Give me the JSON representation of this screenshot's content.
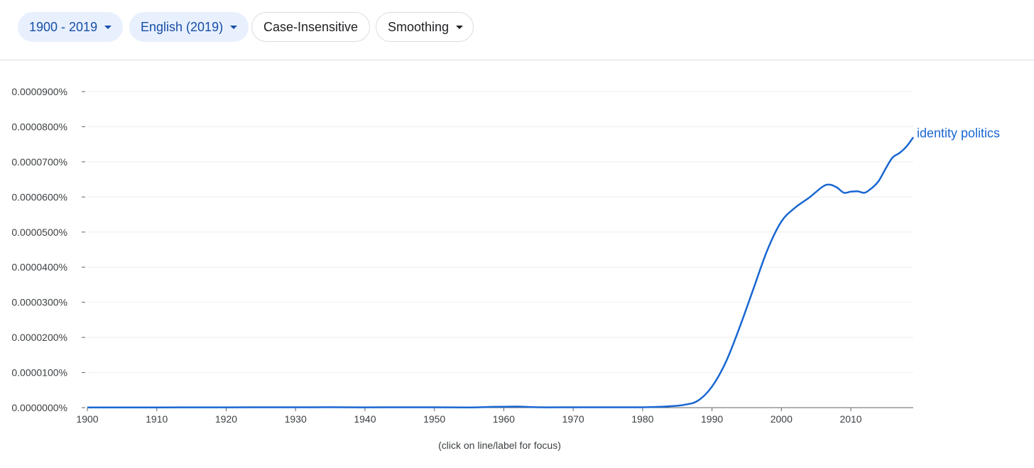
{
  "controls": {
    "year_range": "1900 - 2019",
    "corpus": "English (2019)",
    "case": "Case-Insensitive",
    "smoothing": "Smoothing"
  },
  "colors": {
    "series": "#1967d2",
    "chip_bg": "#e8f0fe",
    "chip_text": "#174ea6",
    "grid": "#eeeeee",
    "axis": "#5f6368"
  },
  "chart_data": {
    "type": "line",
    "xlim": [
      1900,
      2019
    ],
    "ylim": [
      0,
      9e-07
    ],
    "x_ticks": [
      "1900",
      "1910",
      "1920",
      "1930",
      "1940",
      "1950",
      "1960",
      "1970",
      "1980",
      "1990",
      "2000",
      "2010"
    ],
    "y_ticks": [
      "0.0000000%",
      "0.0000100%",
      "0.0000200%",
      "0.0000300%",
      "0.0000400%",
      "0.0000500%",
      "0.0000600%",
      "0.0000700%",
      "0.0000800%",
      "0.0000900%"
    ],
    "grid": true,
    "note": "(click on line/label for focus)",
    "series": [
      {
        "name": "identity politics",
        "color": "#1967d2",
        "points": [
          [
            1900,
            5e-10
          ],
          [
            1910,
            6e-10
          ],
          [
            1920,
            8e-10
          ],
          [
            1925,
            1e-09
          ],
          [
            1930,
            1e-09
          ],
          [
            1935,
            1.2e-09
          ],
          [
            1940,
            8e-10
          ],
          [
            1945,
            1e-09
          ],
          [
            1950,
            1e-09
          ],
          [
            1955,
            5e-10
          ],
          [
            1958,
            2e-09
          ],
          [
            1960,
            2.5e-09
          ],
          [
            1962,
            3e-09
          ],
          [
            1965,
            1e-09
          ],
          [
            1970,
            1e-09
          ],
          [
            1975,
            1e-09
          ],
          [
            1980,
            1e-09
          ],
          [
            1982,
            2e-09
          ],
          [
            1984,
            4e-09
          ],
          [
            1986,
            8e-09
          ],
          [
            1988,
            2e-08
          ],
          [
            1990,
            6e-08
          ],
          [
            1992,
            1.3e-07
          ],
          [
            1994,
            2.3e-07
          ],
          [
            1996,
            3.4e-07
          ],
          [
            1998,
            4.5e-07
          ],
          [
            2000,
            5.3e-07
          ],
          [
            2002,
            5.7e-07
          ],
          [
            2004,
            5.98e-07
          ],
          [
            2006,
            6.3e-07
          ],
          [
            2007,
            6.35e-07
          ],
          [
            2008,
            6.27e-07
          ],
          [
            2009,
            6.12e-07
          ],
          [
            2010,
            6.15e-07
          ],
          [
            2011,
            6.16e-07
          ],
          [
            2012,
            6.12e-07
          ],
          [
            2013,
            6.25e-07
          ],
          [
            2014,
            6.45e-07
          ],
          [
            2015,
            6.8e-07
          ],
          [
            2016,
            7.12e-07
          ],
          [
            2017,
            7.25e-07
          ],
          [
            2018,
            7.43e-07
          ],
          [
            2019,
            7.7e-07
          ]
        ]
      }
    ]
  }
}
